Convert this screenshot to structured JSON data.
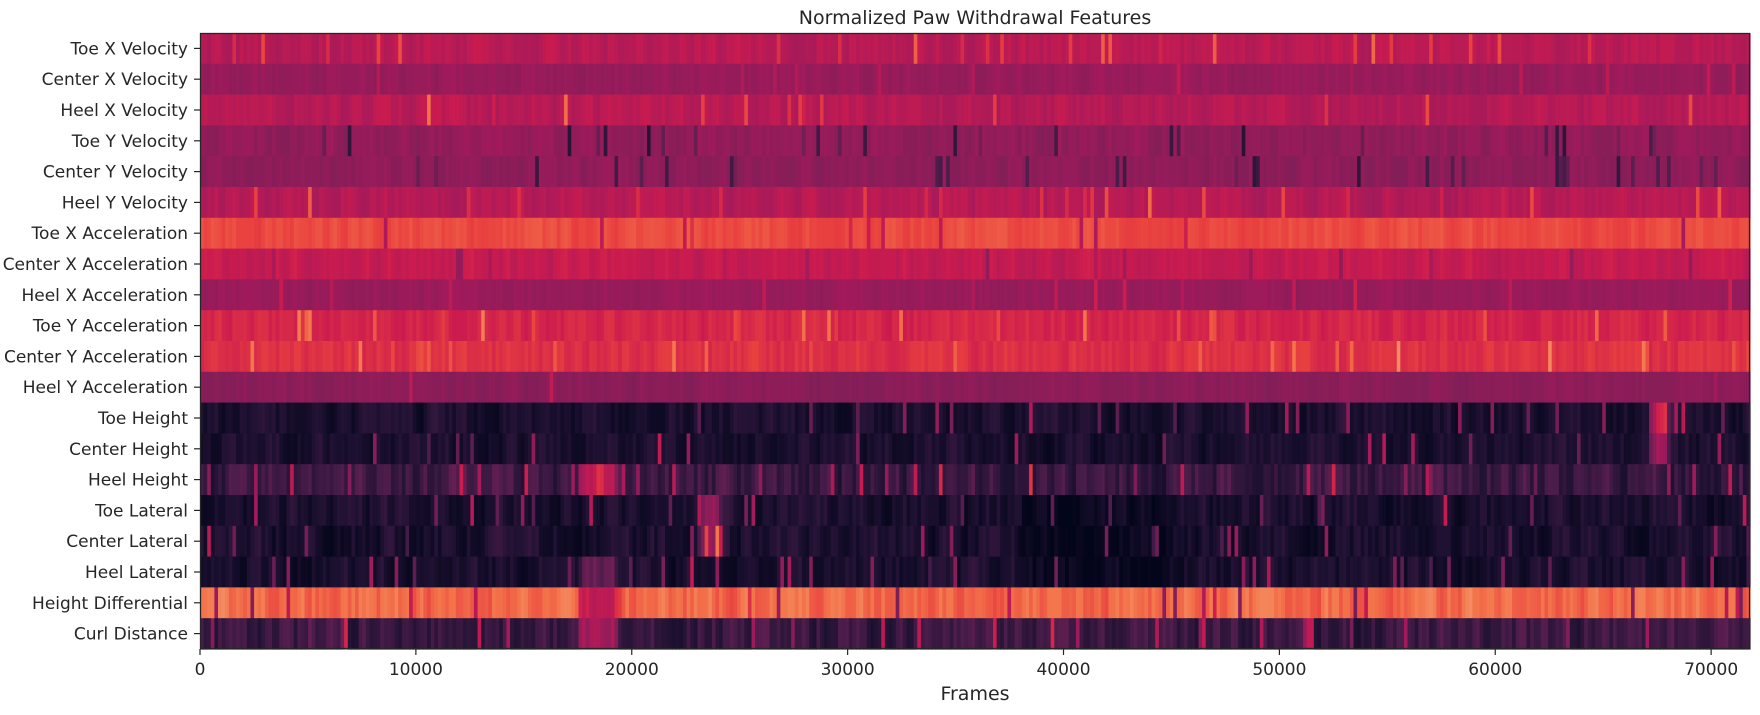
{
  "chart_data": {
    "type": "heatmap",
    "title": "Normalized Paw Withdrawal Features",
    "xlabel": "Frames",
    "ylabel": "",
    "xlim": [
      0,
      71800
    ],
    "x_ticks": [
      0,
      10000,
      20000,
      30000,
      40000,
      50000,
      60000,
      70000
    ],
    "x_tick_labels": [
      "0",
      "10000",
      "20000",
      "30000",
      "40000",
      "50000",
      "60000",
      "70000"
    ],
    "colormap": "rocket",
    "colorbar": false,
    "grid": false,
    "features": [
      {
        "name": "Toe X Velocity",
        "base": 0.57,
        "noise": 0.06,
        "spike_rate": 0.05,
        "spike_amp": 0.15,
        "segments": []
      },
      {
        "name": "Center X Velocity",
        "base": 0.47,
        "noise": 0.05,
        "spike_rate": 0.03,
        "spike_amp": 0.12,
        "segments": []
      },
      {
        "name": "Heel X Velocity",
        "base": 0.56,
        "noise": 0.06,
        "spike_rate": 0.04,
        "spike_amp": 0.15,
        "segments": []
      },
      {
        "name": "Toe Y Velocity",
        "base": 0.45,
        "noise": 0.06,
        "spike_rate": 0.06,
        "spike_amp": -0.2,
        "segments": []
      },
      {
        "name": "Center Y Velocity",
        "base": 0.44,
        "noise": 0.05,
        "spike_rate": 0.05,
        "spike_amp": -0.18,
        "segments": []
      },
      {
        "name": "Heel Y Velocity",
        "base": 0.56,
        "noise": 0.06,
        "spike_rate": 0.05,
        "spike_amp": 0.15,
        "segments": []
      },
      {
        "name": "Toe X Acceleration",
        "base": 0.74,
        "noise": 0.04,
        "spike_rate": 0.04,
        "spike_amp": -0.15,
        "segments": []
      },
      {
        "name": "Center X Acceleration",
        "base": 0.6,
        "noise": 0.05,
        "spike_rate": 0.04,
        "spike_amp": -0.12,
        "segments": []
      },
      {
        "name": "Heel X Acceleration",
        "base": 0.47,
        "noise": 0.04,
        "spike_rate": 0.03,
        "spike_amp": 0.12,
        "segments": []
      },
      {
        "name": "Toe Y Acceleration",
        "base": 0.65,
        "noise": 0.05,
        "spike_rate": 0.05,
        "spike_amp": 0.12,
        "segments": []
      },
      {
        "name": "Center Y Acceleration",
        "base": 0.68,
        "noise": 0.05,
        "spike_rate": 0.05,
        "spike_amp": 0.12,
        "segments": []
      },
      {
        "name": "Heel Y Acceleration",
        "base": 0.43,
        "noise": 0.04,
        "spike_rate": 0.02,
        "spike_amp": 0.1,
        "segments": []
      },
      {
        "name": "Toe Height",
        "base": 0.1,
        "noise": 0.09,
        "spike_rate": 0.05,
        "spike_amp": 0.3,
        "segments": [
          [
            67200,
            67900,
            0.62
          ]
        ]
      },
      {
        "name": "Center Height",
        "base": 0.1,
        "noise": 0.09,
        "spike_rate": 0.05,
        "spike_amp": 0.3,
        "segments": [
          [
            67200,
            67900,
            0.5
          ]
        ]
      },
      {
        "name": "Heel Height",
        "base": 0.2,
        "noise": 0.13,
        "spike_rate": 0.06,
        "spike_amp": 0.3,
        "segments": [
          [
            17500,
            19200,
            0.62
          ],
          [
            11000,
            13800,
            0.25
          ]
        ]
      },
      {
        "name": "Toe Lateral",
        "base": 0.1,
        "noise": 0.1,
        "spike_rate": 0.05,
        "spike_amp": 0.3,
        "segments": [
          [
            38000,
            45000,
            0.03
          ],
          [
            23000,
            24000,
            0.45
          ]
        ]
      },
      {
        "name": "Center Lateral",
        "base": 0.1,
        "noise": 0.1,
        "spike_rate": 0.05,
        "spike_amp": 0.3,
        "segments": [
          [
            38000,
            45000,
            0.03
          ],
          [
            23000,
            24000,
            0.45
          ]
        ]
      },
      {
        "name": "Heel Lateral",
        "base": 0.1,
        "noise": 0.1,
        "spike_rate": 0.05,
        "spike_amp": 0.3,
        "segments": [
          [
            38000,
            45000,
            0.03
          ],
          [
            17500,
            19200,
            0.3
          ]
        ]
      },
      {
        "name": "Height Differential",
        "base": 0.8,
        "noise": 0.08,
        "spike_rate": 0.04,
        "spike_amp": -0.3,
        "segments": [
          [
            17500,
            19200,
            0.6
          ]
        ]
      },
      {
        "name": "Curl Distance",
        "base": 0.2,
        "noise": 0.12,
        "spike_rate": 0.06,
        "spike_amp": 0.3,
        "segments": [
          [
            17500,
            19200,
            0.5
          ]
        ]
      }
    ]
  }
}
